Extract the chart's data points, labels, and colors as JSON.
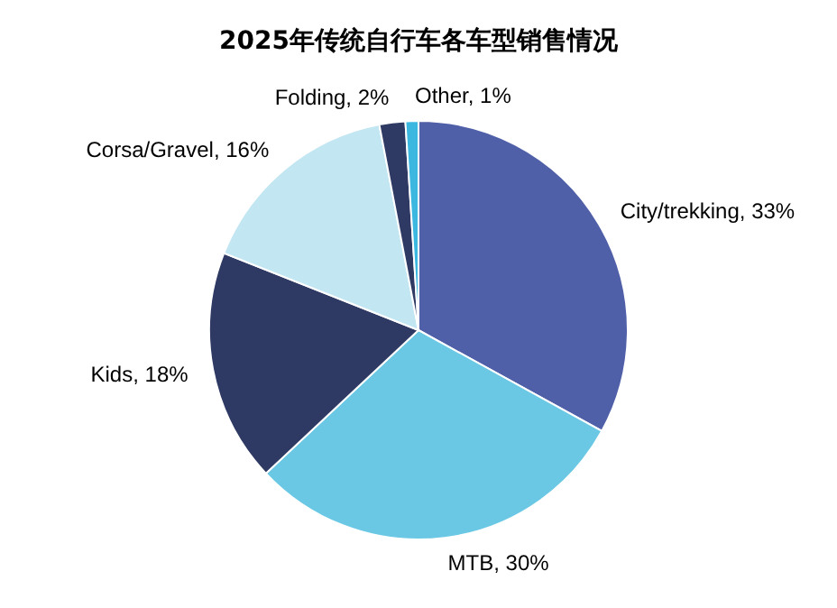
{
  "chart_data": {
    "type": "pie",
    "title": "2025年传统自行车各车型销售情况",
    "categories": [
      "City/trekking",
      "MTB",
      "Kids",
      "Corsa/Gravel",
      "Folding",
      "Other"
    ],
    "values": [
      33,
      30,
      18,
      16,
      2,
      1
    ],
    "value_labels": [
      "33%",
      "30%",
      "18%",
      "16%",
      "2%",
      "1%"
    ],
    "colors": [
      "#5060a8",
      "#6ac8e4",
      "#2e3a64",
      "#c2e6f2",
      "#2e3a64",
      "#3cb8e0"
    ]
  }
}
